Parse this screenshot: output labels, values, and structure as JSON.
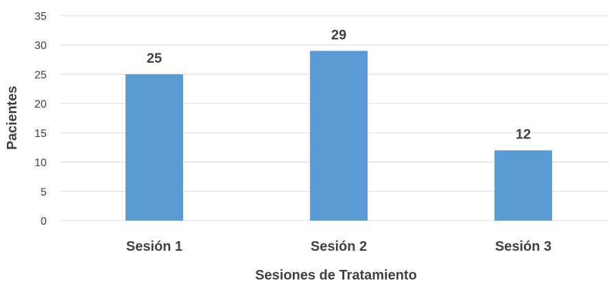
{
  "chart_data": {
    "type": "bar",
    "title": "",
    "xlabel": "Sesiones de Tratamiento",
    "ylabel": "Pacientes",
    "categories": [
      "Sesión 1",
      "Sesión 2",
      "Sesión 3"
    ],
    "values": [
      25,
      29,
      12
    ],
    "data_labels": [
      "25",
      "29",
      "12"
    ],
    "ylim": [
      0,
      35
    ],
    "yticks": [
      "0",
      "5",
      "10",
      "15",
      "20",
      "25",
      "30",
      "35"
    ],
    "grid": true,
    "legend": "none",
    "bar_color": "#5b9bd5"
  }
}
